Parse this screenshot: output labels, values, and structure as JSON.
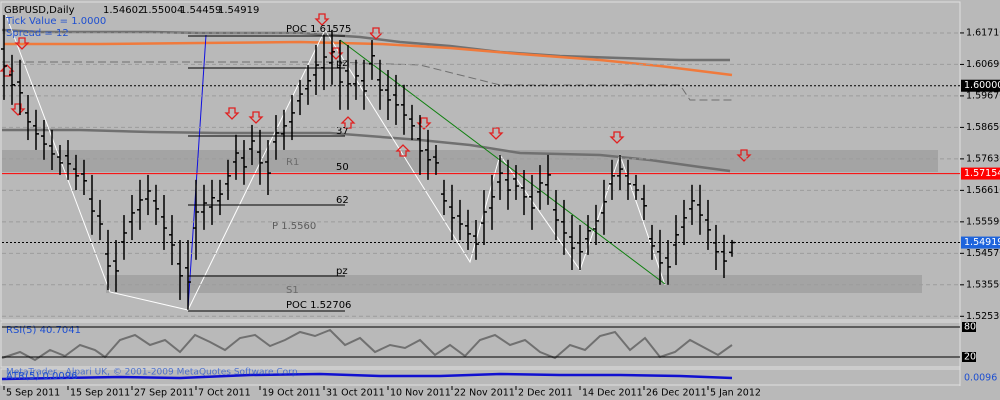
{
  "chart_data": {
    "type": "ohlc",
    "title": "GBPUSD,Daily",
    "notes": [
      "Tick Value = 1.0000",
      "Spread = 12"
    ],
    "categories": [
      "5 Sep 2011",
      null,
      null,
      null,
      null,
      null,
      null,
      null,
      "15 Sep 2011",
      null,
      null,
      null,
      null,
      null,
      null,
      null,
      "27 Sep 2011",
      null,
      null,
      null,
      null,
      null,
      null,
      null,
      "7 Oct 2011",
      null,
      null,
      null,
      null,
      null,
      null,
      null,
      "19 Oct 2011",
      null,
      null,
      null,
      null,
      null,
      null,
      null,
      "31 Oct 2011",
      null,
      null,
      null,
      null,
      null,
      null,
      null,
      "10 Nov 2011",
      null,
      null,
      null,
      null,
      null,
      null,
      null,
      "22 Nov 2011",
      null,
      null,
      null,
      null,
      null,
      null,
      null,
      "2 Dec 2011",
      null,
      null,
      null,
      null,
      null,
      null,
      null,
      "14 Dec 2011",
      null,
      null,
      null,
      null,
      null,
      null,
      null,
      "26 Dec 2011",
      null,
      null,
      null,
      null,
      null,
      null,
      null,
      "5 Jan 2012",
      null,
      null,
      null
    ],
    "open": [
      1.6119,
      1.6035,
      1.6012,
      1.5912,
      1.587,
      1.5837,
      1.5805,
      1.5769,
      1.5773,
      1.573,
      1.5714,
      1.5633,
      1.5578,
      1.5455,
      1.5432,
      1.5494,
      1.5559,
      1.5598,
      1.5633,
      1.5627,
      1.5575,
      1.5517,
      1.5423,
      1.541,
      1.5539,
      1.5591,
      1.5607,
      1.5627,
      1.5682,
      1.5753,
      1.5766,
      1.5795,
      1.5785,
      1.5753,
      1.5818,
      1.5844,
      1.5883,
      1.5951,
      1.599,
      1.6035,
      1.6058,
      1.6074,
      1.6058,
      1.6048,
      1.6006,
      1.6016,
      1.6071,
      1.6019,
      1.5986,
      1.597,
      1.5938,
      1.5892,
      1.5828,
      1.5792,
      1.5769,
      1.5649,
      1.5607,
      1.5578,
      1.5546,
      1.5513,
      1.5555,
      1.5604,
      1.5688,
      1.5695,
      1.5698,
      1.5669,
      1.564,
      1.5656,
      1.5679,
      1.5598,
      1.5559,
      1.551,
      1.5491,
      1.5504,
      1.5536,
      1.5588,
      1.5682,
      1.5708,
      1.5708,
      1.5679,
      1.5633,
      1.5504,
      1.5462,
      1.5442,
      1.5484,
      1.5542,
      1.5601,
      1.5614,
      1.5565,
      1.5491,
      1.5462,
      1.54602
    ],
    "high": [
      1.6229,
      1.61,
      1.6084,
      1.597,
      1.5922,
      1.5889,
      1.5857,
      1.5808,
      1.5824,
      1.5776,
      1.576,
      1.5711,
      1.563,
      1.5533,
      1.55,
      1.5581,
      1.5646,
      1.5695,
      1.5711,
      1.5679,
      1.5646,
      1.5581,
      1.55,
      1.55,
      1.5695,
      1.5679,
      1.5695,
      1.5695,
      1.576,
      1.5841,
      1.5824,
      1.5873,
      1.5857,
      1.5824,
      1.5905,
      1.5922,
      1.597,
      1.6019,
      1.6067,
      1.6132,
      1.6165,
      1.6181,
      1.6148,
      1.6132,
      1.6084,
      1.6084,
      1.6148,
      1.6084,
      1.6051,
      1.6035,
      1.6003,
      1.5938,
      1.5905,
      1.5857,
      1.5808,
      1.5695,
      1.5679,
      1.563,
      1.5598,
      1.5565,
      1.5662,
      1.5711,
      1.5776,
      1.576,
      1.5743,
      1.5727,
      1.5711,
      1.5743,
      1.5776,
      1.5662,
      1.563,
      1.5581,
      1.5549,
      1.5581,
      1.5614,
      1.5695,
      1.576,
      1.5776,
      1.576,
      1.5711,
      1.5679,
      1.5549,
      1.5533,
      1.55,
      1.5581,
      1.563,
      1.5679,
      1.5679,
      1.563,
      1.5549,
      1.5517,
      1.55004
    ],
    "low": [
      1.5954,
      1.5938,
      1.5905,
      1.5824,
      1.5792,
      1.576,
      1.5727,
      1.5711,
      1.5695,
      1.5662,
      1.5646,
      1.5517,
      1.55,
      1.5338,
      1.5332,
      1.5436,
      1.55,
      1.5533,
      1.5581,
      1.5549,
      1.5468,
      1.5419,
      1.5306,
      1.5274,
      1.5436,
      1.5533,
      1.5549,
      1.5581,
      1.563,
      1.5695,
      1.5679,
      1.5743,
      1.5679,
      1.5646,
      1.576,
      1.5792,
      1.5824,
      1.5905,
      1.5938,
      1.597,
      1.5986,
      1.6003,
      1.5922,
      1.5922,
      1.5954,
      1.5922,
      1.6019,
      1.5922,
      1.5889,
      1.5873,
      1.5841,
      1.5824,
      1.5711,
      1.5695,
      1.5711,
      1.5581,
      1.55,
      1.55,
      1.5468,
      1.5436,
      1.5484,
      1.5533,
      1.563,
      1.5598,
      1.563,
      1.5581,
      1.5533,
      1.5598,
      1.5614,
      1.55,
      1.5452,
      1.5403,
      1.5403,
      1.5452,
      1.5484,
      1.5517,
      1.563,
      1.5662,
      1.563,
      1.563,
      1.5565,
      1.5436,
      1.5355,
      1.5355,
      1.5419,
      1.5484,
      1.5549,
      1.5517,
      1.5468,
      1.5403,
      1.5377,
      1.54459
    ],
    "close": [
      1.6064,
      1.6003,
      1.5977,
      1.5883,
      1.5844,
      1.5811,
      1.5779,
      1.575,
      1.5747,
      1.5708,
      1.5692,
      1.5594,
      1.5552,
      1.5416,
      1.54,
      1.5523,
      1.5588,
      1.563,
      1.5659,
      1.5601,
      1.5539,
      1.5484,
      1.5384,
      1.5364,
      1.5591,
      1.562,
      1.5637,
      1.5649,
      1.5708,
      1.5782,
      1.5737,
      1.5821,
      1.575,
      1.5717,
      1.5847,
      1.587,
      1.5912,
      1.5973,
      1.6016,
      1.6067,
      1.6093,
      1.611,
      1.6012,
      1.6006,
      1.6032,
      1.5983,
      1.6097,
      1.5986,
      1.5954,
      1.5938,
      1.5905,
      1.587,
      1.5789,
      1.576,
      1.575,
      1.5627,
      1.5572,
      1.5552,
      1.552,
      1.5487,
      1.5591,
      1.564,
      1.5717,
      1.5662,
      1.5675,
      1.564,
      1.5604,
      1.5685,
      1.5711,
      1.5565,
      1.5523,
      1.5474,
      1.5462,
      1.553,
      1.5562,
      1.5624,
      1.5708,
      1.573,
      1.5682,
      1.5662,
      1.5611,
      1.5481,
      1.5426,
      1.5413,
      1.5517,
      1.5572,
      1.5627,
      1.5581,
      1.5533,
      1.5462,
      1.5432,
      1.54919
    ],
    "color": "#000000",
    "ylim": [
      1.5241,
      1.6268
    ],
    "yticks": [
      {
        "value": 1.6171,
        "label": "1.61710"
      },
      {
        "value": 1.6069,
        "label": "1.60690"
      },
      {
        "value": 1.5967,
        "label": "1.59670"
      },
      {
        "value": 1.5865,
        "label": "1.58650"
      },
      {
        "value": 1.5763,
        "label": "1.57630"
      },
      {
        "value": 1.5661,
        "label": "1.56610"
      },
      {
        "value": 1.5559,
        "label": "1.55590"
      },
      {
        "value": 1.5457,
        "label": "1.54570"
      },
      {
        "value": 1.5355,
        "label": "1.53550"
      },
      {
        "value": 1.5253,
        "label": "1.52530"
      }
    ],
    "grid": true,
    "levels": [
      {
        "value": 1.6,
        "label": "1.60000",
        "color": "#000000",
        "style": "dotted"
      },
      {
        "value": 1.57154,
        "label": "1.57154",
        "color": "#ff0000",
        "style": "solid"
      }
    ],
    "annotations": [
      "POC 1.61575",
      "pz",
      "37",
      "50",
      "62",
      "pz",
      "POC 1.52706",
      "R1",
      "P 1.5560",
      "S1"
    ],
    "rsi": {
      "name": "RSI(5)",
      "value": 40.7041,
      "ylim": [
        0,
        90
      ],
      "yticks": [
        80,
        20
      ]
    },
    "atr": {
      "name": "ATR(5)",
      "value": 0.0096
    },
    "copyright": "MetaTrader - Alpari UK, © 2001-2009 MetaQuotes Software Corp."
  }
}
